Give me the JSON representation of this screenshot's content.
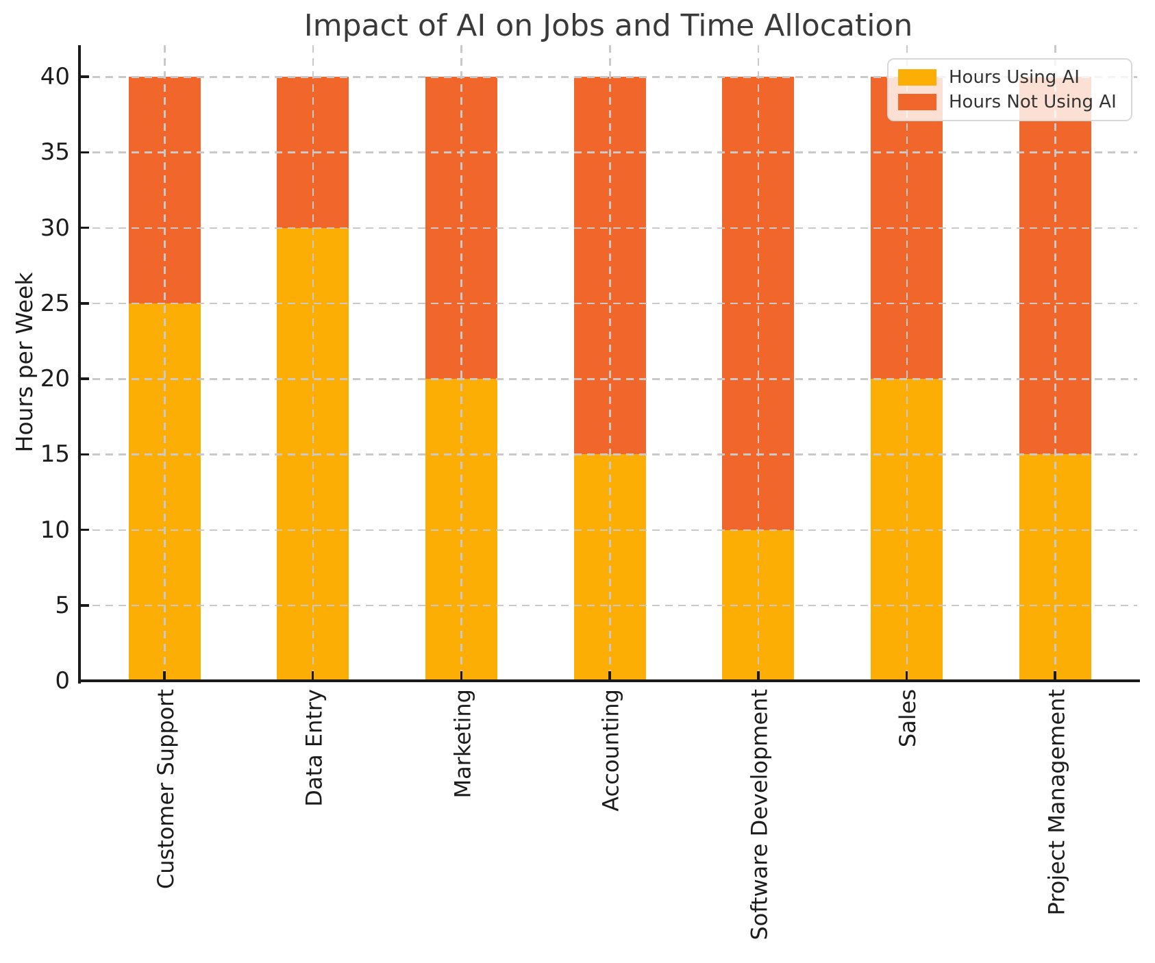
{
  "chart_data": {
    "type": "bar",
    "stacked": true,
    "title": "Impact of AI on Jobs and Time Allocation",
    "xlabel": "",
    "ylabel": "Hours per Week",
    "ylim": [
      0,
      40
    ],
    "yticks": [
      0,
      5,
      10,
      15,
      20,
      25,
      30,
      35,
      40
    ],
    "categories": [
      "Customer Support",
      "Data Entry",
      "Marketing",
      "Accounting",
      "Software Development",
      "Sales",
      "Project Management"
    ],
    "series": [
      {
        "name": "Hours Using AI",
        "color": "#FDAE04",
        "values": [
          25,
          30,
          20,
          15,
          10,
          20,
          15
        ]
      },
      {
        "name": "Hours Not Using AI",
        "color": "#F1672B",
        "values": [
          15,
          10,
          20,
          25,
          30,
          20,
          25
        ]
      }
    ],
    "totals_per_category": [
      40,
      40,
      40,
      40,
      40,
      40,
      40
    ],
    "legend": {
      "position": "upper right",
      "entries": [
        "Hours Using AI",
        "Hours Not Using AI"
      ]
    },
    "grid": {
      "show": true,
      "style": "dashed",
      "color": "#c9c9c9"
    },
    "colors": {
      "title_text": "#3a3a3a",
      "tick_text": "#1c1c1c",
      "spine": "#1a1a1a",
      "background": "#ffffff"
    }
  }
}
